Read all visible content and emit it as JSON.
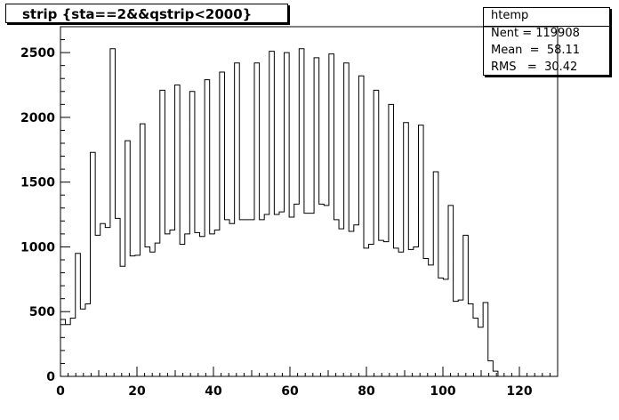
{
  "title": "strip {sta==2&&qstrip<2000}",
  "stats": {
    "name": "htemp",
    "rows": [
      {
        "label": "Nent",
        "sep": " = ",
        "value": "119908"
      },
      {
        "label": "Mean",
        "sep": "  =  ",
        "value": "58.11"
      },
      {
        "label": "RMS",
        "sep": "   =  ",
        "value": "30.42"
      }
    ]
  },
  "chart_data": {
    "type": "histogram",
    "title": "strip {sta==2&&qstrip<2000}",
    "xlim": [
      0,
      130
    ],
    "ylim": [
      0,
      2700
    ],
    "bin_width": 1.3,
    "x_ticks": [
      0,
      20,
      40,
      60,
      80,
      100,
      120
    ],
    "y_ticks": [
      0,
      500,
      1000,
      1500,
      2000,
      2500
    ],
    "values": [
      440,
      400,
      450,
      950,
      520,
      560,
      1730,
      1090,
      1180,
      1150,
      2530,
      1220,
      850,
      1820,
      930,
      935,
      1950,
      1000,
      960,
      1030,
      2210,
      1100,
      1130,
      2250,
      1020,
      1100,
      2200,
      1110,
      1080,
      2290,
      1100,
      1130,
      2350,
      1210,
      1180,
      2420,
      1210,
      1210,
      1210,
      2420,
      1210,
      1250,
      2510,
      1250,
      1270,
      2500,
      1230,
      1330,
      2530,
      1260,
      1260,
      2460,
      1330,
      1320,
      2490,
      1210,
      1140,
      2420,
      1120,
      1170,
      2320,
      990,
      1020,
      2210,
      1050,
      1040,
      2100,
      990,
      960,
      1960,
      980,
      1000,
      1940,
      910,
      860,
      1580,
      760,
      750,
      1320,
      580,
      590,
      1090,
      560,
      450,
      380,
      570,
      120,
      40,
      0,
      0,
      0,
      0,
      0,
      0,
      0,
      0,
      0,
      0,
      0,
      0
    ]
  }
}
